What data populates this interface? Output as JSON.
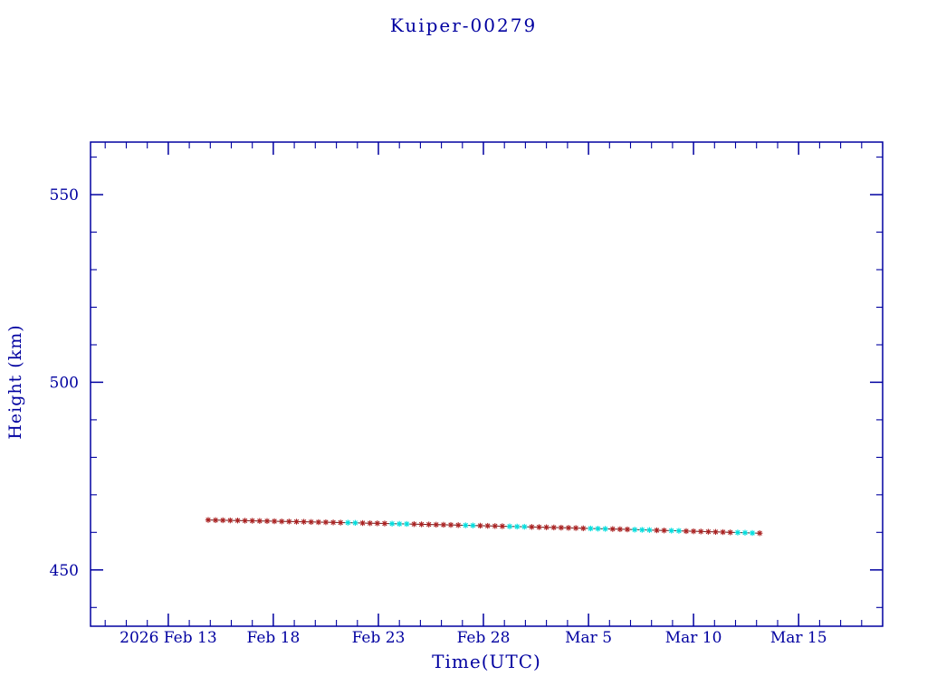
{
  "chart_data": {
    "type": "line",
    "title": "Kuiper-00279",
    "xlabel": "Time(UTC)",
    "ylabel": "Height (km)",
    "x_units": "days after 2026 Feb 13 (UTC)",
    "xlim": [
      -3.7,
      34.0
    ],
    "ylim": [
      435,
      564
    ],
    "grid": false,
    "legend": "none",
    "frame_color": "#0000a0",
    "x_major_ticks": [
      {
        "t": 0,
        "label": "2026 Feb 13"
      },
      {
        "t": 5,
        "label": "Feb 18"
      },
      {
        "t": 10,
        "label": "Feb 23"
      },
      {
        "t": 15,
        "label": "Feb 28"
      },
      {
        "t": 20,
        "label": "Mar 5"
      },
      {
        "t": 25,
        "label": "Mar 10"
      },
      {
        "t": 30,
        "label": "Mar 15"
      }
    ],
    "x_minor_step_days": 1,
    "y_major_ticks": [
      {
        "v": 450,
        "label": "450"
      },
      {
        "v": 500,
        "label": "500"
      },
      {
        "v": 550,
        "label": "550"
      }
    ],
    "y_minor_step_km": 10,
    "cyan_color": "#00dede",
    "cyan_windows": [
      [
        8.4,
        9.2
      ],
      [
        10.6,
        11.4
      ],
      [
        14.0,
        14.6
      ],
      [
        16.2,
        17.0
      ],
      [
        20.0,
        20.9
      ],
      [
        22.1,
        22.95
      ],
      [
        23.9,
        24.35
      ],
      [
        27.0,
        27.85
      ]
    ],
    "series": [
      {
        "name": "orbit-height",
        "marker": "asterisk",
        "color": "#aa2222",
        "line_color": "#5a2222",
        "points": [
          [
            1.9,
            463.3
          ],
          [
            2.25,
            463.26
          ],
          [
            2.6,
            463.23
          ],
          [
            2.95,
            463.19
          ],
          [
            3.3,
            463.16
          ],
          [
            3.65,
            463.12
          ],
          [
            4,
            463.08
          ],
          [
            4.35,
            463.05
          ],
          [
            4.7,
            463.01
          ],
          [
            5.05,
            462.97
          ],
          [
            5.4,
            462.93
          ],
          [
            5.75,
            462.9
          ],
          [
            6.1,
            462.86
          ],
          [
            6.45,
            462.82
          ],
          [
            6.8,
            462.78
          ],
          [
            7.15,
            462.74
          ],
          [
            7.5,
            462.7
          ],
          [
            7.85,
            462.66
          ],
          [
            8.2,
            462.62
          ],
          [
            8.55,
            462.58
          ],
          [
            8.9,
            462.54
          ],
          [
            9.25,
            462.49
          ],
          [
            9.6,
            462.45
          ],
          [
            9.95,
            462.41
          ],
          [
            10.3,
            462.37
          ],
          [
            10.65,
            462.33
          ],
          [
            11,
            462.28
          ],
          [
            11.35,
            462.24
          ],
          [
            11.7,
            462.2
          ],
          [
            12.05,
            462.15
          ],
          [
            12.4,
            462.11
          ],
          [
            12.75,
            462.06
          ],
          [
            13.1,
            462.02
          ],
          [
            13.45,
            461.97
          ],
          [
            13.8,
            461.93
          ],
          [
            14.15,
            461.88
          ],
          [
            14.5,
            461.83
          ],
          [
            14.85,
            461.79
          ],
          [
            15.2,
            461.74
          ],
          [
            15.55,
            461.69
          ],
          [
            15.9,
            461.65
          ],
          [
            16.25,
            461.6
          ],
          [
            16.6,
            461.55
          ],
          [
            16.95,
            461.5
          ],
          [
            17.3,
            461.45
          ],
          [
            17.65,
            461.4
          ],
          [
            18,
            461.35
          ],
          [
            18.35,
            461.3
          ],
          [
            18.7,
            461.25
          ],
          [
            19.05,
            461.2
          ],
          [
            19.4,
            461.15
          ],
          [
            19.75,
            461.1
          ],
          [
            20.1,
            461.05
          ],
          [
            20.45,
            461
          ],
          [
            20.8,
            460.95
          ],
          [
            21.15,
            460.89
          ],
          [
            21.5,
            460.84
          ],
          [
            21.85,
            460.79
          ],
          [
            22.2,
            460.73
          ],
          [
            22.55,
            460.68
          ],
          [
            22.9,
            460.63
          ],
          [
            23.25,
            460.57
          ],
          [
            23.6,
            460.52
          ],
          [
            23.95,
            460.46
          ],
          [
            24.3,
            460.41
          ],
          [
            24.65,
            460.35
          ],
          [
            25,
            460.3
          ],
          [
            25.35,
            460.24
          ],
          [
            25.7,
            460.18
          ],
          [
            26.05,
            460.13
          ],
          [
            26.4,
            460.07
          ],
          [
            26.75,
            460.01
          ],
          [
            27.1,
            459.95
          ],
          [
            27.45,
            459.9
          ],
          [
            27.8,
            459.84
          ],
          [
            28.15,
            459.78
          ]
        ]
      }
    ]
  }
}
